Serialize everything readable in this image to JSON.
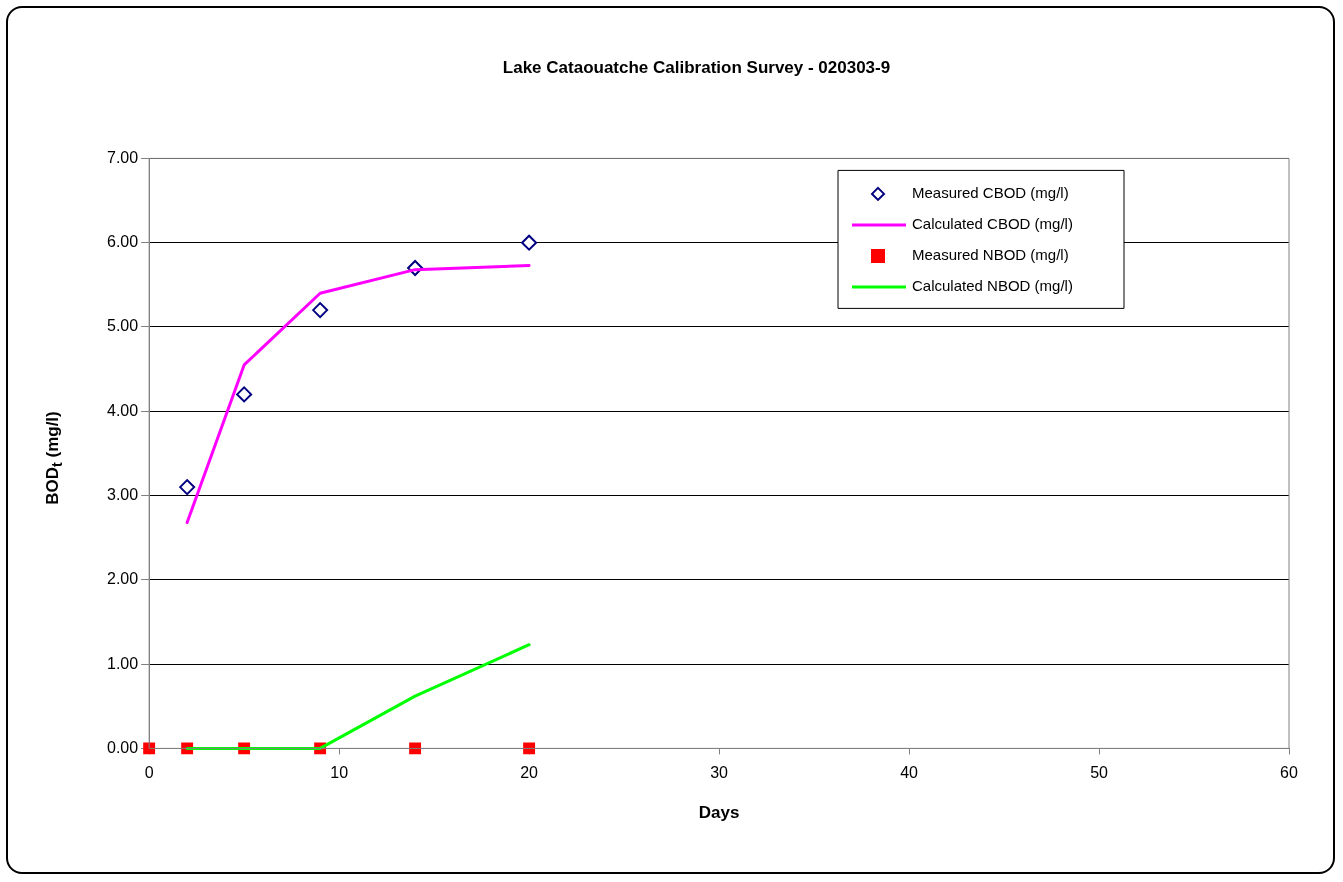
{
  "chart_data": {
    "type": "line",
    "title": "Lake Cataouatche Calibration Survey - 020303-9",
    "xlabel": "Days",
    "ylabel": "BOD$_{t}$ (mg/l)",
    "xlim": [
      0,
      60
    ],
    "xticks": [
      0,
      10,
      20,
      30,
      40,
      50,
      60
    ],
    "ylim": [
      0,
      7
    ],
    "yticks": [
      {
        "value": 0,
        "label": "0.00"
      },
      {
        "value": 1,
        "label": "1.00"
      },
      {
        "value": 2,
        "label": "2.00"
      },
      {
        "value": 3,
        "label": "3.00"
      },
      {
        "value": 4,
        "label": "4.00"
      },
      {
        "value": 5,
        "label": "5.00"
      },
      {
        "value": 6,
        "label": "6.00"
      },
      {
        "value": 7,
        "label": "7.00"
      }
    ],
    "grid": "y",
    "legend": "top right",
    "series": [
      {
        "name": "Measured CBOD (mg/l)",
        "type": "scatter",
        "marker": "diamond",
        "color": "#000080",
        "x": [
          2,
          5,
          9,
          14,
          20
        ],
        "values": [
          3.1,
          4.2,
          5.2,
          5.7,
          6.0
        ]
      },
      {
        "name": "Calculated CBOD (mg/l)",
        "type": "line",
        "marker": "none",
        "color": "#ff00ff",
        "x": [
          2,
          5,
          9,
          14,
          20
        ],
        "values": [
          2.68,
          4.55,
          5.4,
          5.68,
          5.73
        ]
      },
      {
        "name": "Measured NBOD (mg/l)",
        "type": "scatter",
        "marker": "square",
        "color": "#ff0000",
        "x": [
          0,
          2,
          5,
          9,
          14,
          20
        ],
        "values": [
          0,
          0,
          0,
          0,
          0,
          0
        ]
      },
      {
        "name": "Calculated NBOD (mg/l)",
        "type": "line",
        "marker": "none",
        "color": "#00ff00",
        "x": [
          2,
          5,
          9,
          14,
          20
        ],
        "values": [
          0,
          0,
          0,
          0.62,
          1.23
        ]
      }
    ]
  }
}
